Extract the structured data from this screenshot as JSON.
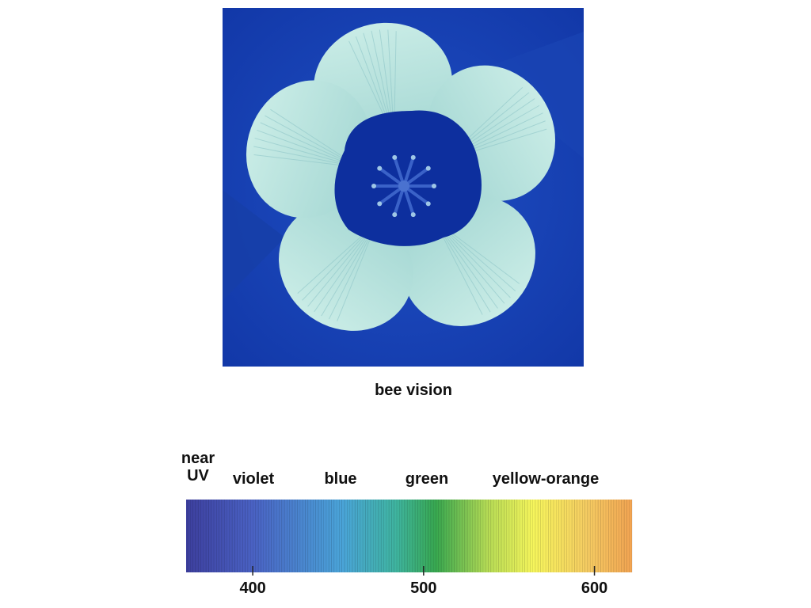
{
  "caption": "bee vision",
  "spectrum": {
    "bands": [
      "near UV",
      "violet",
      "blue",
      "green",
      "yellow-orange"
    ],
    "xlim": [
      361,
      622
    ],
    "xticks": [
      400,
      500,
      600
    ]
  }
}
